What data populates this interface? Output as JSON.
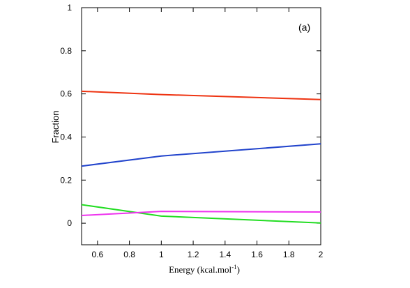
{
  "chart_data": {
    "type": "line",
    "panel_label": "(a)",
    "xlabel_main": "Energy (kcal.mol",
    "xlabel_sup": "-1",
    "xlabel_close": ")",
    "ylabel": "Fraction",
    "xlim": [
      0.5,
      2.0
    ],
    "ylim": [
      -0.1,
      1.0
    ],
    "x_ticks": [
      0.6,
      0.8,
      1.0,
      1.2,
      1.4,
      1.6,
      1.8,
      2.0
    ],
    "x_tick_labels": [
      "0.6",
      "0.8",
      "1",
      "1.2",
      "1.4",
      "1.6",
      "1.8",
      "2"
    ],
    "y_ticks": [
      0,
      0.2,
      0.4,
      0.6,
      0.8,
      1.0
    ],
    "y_tick_labels": [
      "0",
      "0.2",
      "0.4",
      "0.6",
      "0.8",
      "1"
    ],
    "grid": false,
    "series": [
      {
        "color": "#ee3311",
        "x": [
          0.5,
          1.0,
          2.0
        ],
        "y": [
          0.612,
          0.597,
          0.574
        ]
      },
      {
        "color": "#2244cc",
        "x": [
          0.5,
          1.0,
          2.0
        ],
        "y": [
          0.265,
          0.312,
          0.368
        ]
      },
      {
        "color": "#22dd22",
        "x": [
          0.5,
          1.0,
          2.0
        ],
        "y": [
          0.086,
          0.033,
          0.001
        ]
      },
      {
        "color": "#ee33ee",
        "x": [
          0.5,
          1.0,
          2.0
        ],
        "y": [
          0.036,
          0.055,
          0.052
        ]
      }
    ]
  }
}
